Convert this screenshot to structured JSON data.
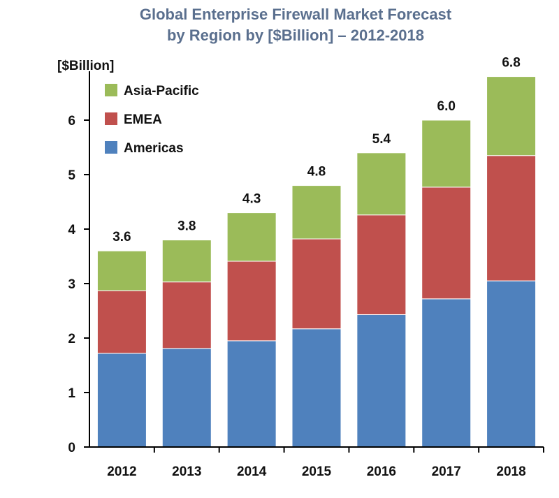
{
  "chart_data": {
    "type": "bar",
    "stacked": true,
    "title": "Global Enterprise Firewall Market Forecast",
    "subtitle": "by Region by [$Billion] – 2012-2018",
    "ylabel": "[$Billion]",
    "xlabel": "",
    "ylim": [
      0,
      7
    ],
    "yticks": [
      0,
      1,
      2,
      3,
      4,
      5,
      6
    ],
    "grid": false,
    "legend_position": "top-left",
    "categories": [
      "2012",
      "2013",
      "2014",
      "2015",
      "2016",
      "2017",
      "2018"
    ],
    "series": [
      {
        "name": "Americas",
        "color": "#4f81bd",
        "values": [
          1.72,
          1.81,
          1.95,
          2.17,
          2.43,
          2.72,
          3.05
        ]
      },
      {
        "name": "EMEA",
        "color": "#c0504d",
        "values": [
          1.15,
          1.22,
          1.46,
          1.65,
          1.83,
          2.05,
          2.3
        ]
      },
      {
        "name": "Asia-Pacific",
        "color": "#9bbb59",
        "values": [
          0.73,
          0.77,
          0.89,
          0.98,
          1.14,
          1.23,
          1.45
        ]
      }
    ],
    "totals": [
      "3.6",
      "3.8",
      "4.3",
      "4.8",
      "5.4",
      "6.0",
      "6.8"
    ]
  }
}
